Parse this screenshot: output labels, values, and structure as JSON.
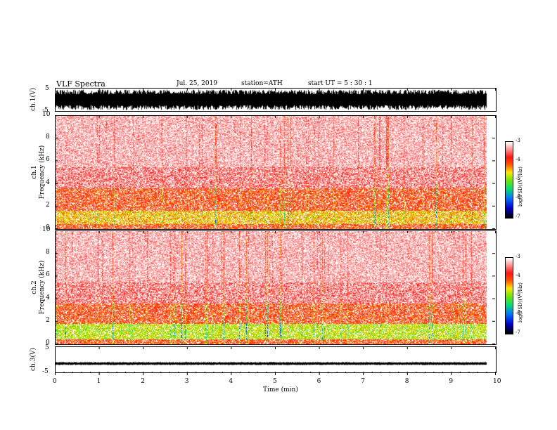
{
  "header": {
    "title": "VLF  Spectra",
    "date": "Jul.  25,  2019",
    "station": "station=ATH",
    "start_ut": "start  UT  =    5  :  30 : 1"
  },
  "panels": {
    "ch1_wave_label": "ch.1(V)",
    "ch1_spec_label_top": "ch.1",
    "ch1_spec_label_bottom": "Frequency  (kHz)",
    "ch2_spec_label_top": "ch.2",
    "ch2_spec_label_bottom": "Frequency  (kHz)",
    "ch3_wave_label": "ch.3(V)"
  },
  "colorbar": {
    "label": "log(PSD)(V²/Hz)",
    "ticks": [
      "-3",
      "-4",
      "-5",
      "-6",
      "-7"
    ]
  },
  "colors": {
    "spectrum_bg": "#ffffff",
    "low_power": "#ff9a9a",
    "mid_power": "#ff1a1a",
    "high_power": "#ffd400",
    "very_high_power": "#7ee000",
    "waveform": "#000000"
  },
  "chart_data": [
    {
      "type": "line",
      "title": "",
      "ylabel": "ch.1(V)",
      "ylim": [
        -5,
        5
      ],
      "yticks": [
        "5",
        "-5"
      ],
      "xlim": [
        0,
        10
      ],
      "series": [
        {
          "description": "dense broadband waveform",
          "amplitude_range": [
            -4.5,
            4.5
          ]
        }
      ]
    },
    {
      "type": "heatmap",
      "ylabel": "Frequency  (kHz)",
      "ylim": [
        0,
        10
      ],
      "yticks": [
        "0",
        "2",
        "4",
        "6",
        "8",
        "10"
      ],
      "xlim": [
        0,
        10
      ],
      "data_extent_min": 9.8,
      "bands": [
        {
          "from_khz": 0,
          "to_khz": 0.4,
          "level": "-4"
        },
        {
          "from_khz": 0.4,
          "to_khz": 1.6,
          "level": "-4.5"
        },
        {
          "from_khz": 1.6,
          "to_khz": 3.6,
          "level": "-4"
        },
        {
          "from_khz": 3.6,
          "to_khz": 5.5,
          "level": "-3.5"
        },
        {
          "from_khz": 5.5,
          "to_khz": 10,
          "level": "-3.2"
        }
      ]
    },
    {
      "type": "heatmap",
      "ylabel": "Frequency  (kHz)",
      "ylim": [
        0,
        10
      ],
      "yticks": [
        "0",
        "2",
        "4",
        "6",
        "8",
        "10"
      ],
      "xlim": [
        0,
        10
      ],
      "data_extent_min": 9.8,
      "bands": [
        {
          "from_khz": 0,
          "to_khz": 0.4,
          "level": "-4"
        },
        {
          "from_khz": 0.4,
          "to_khz": 1.8,
          "level": "-4.8"
        },
        {
          "from_khz": 1.8,
          "to_khz": 3.6,
          "level": "-4"
        },
        {
          "from_khz": 3.6,
          "to_khz": 5.5,
          "level": "-3.5"
        },
        {
          "from_khz": 5.5,
          "to_khz": 10,
          "level": "-3.2"
        }
      ]
    },
    {
      "type": "line",
      "ylabel": "ch.3(V)",
      "ylim": [
        -5,
        5
      ],
      "yticks": [
        "5",
        "-5"
      ],
      "xlim": [
        0,
        10
      ],
      "series": [
        {
          "description": "near-constant offset waveform",
          "mean": -1.5
        }
      ]
    }
  ],
  "xaxis": {
    "label": "Time  (min)",
    "ticks": [
      "0",
      "1",
      "2",
      "3",
      "4",
      "5",
      "6",
      "7",
      "8",
      "9",
      "10"
    ]
  }
}
